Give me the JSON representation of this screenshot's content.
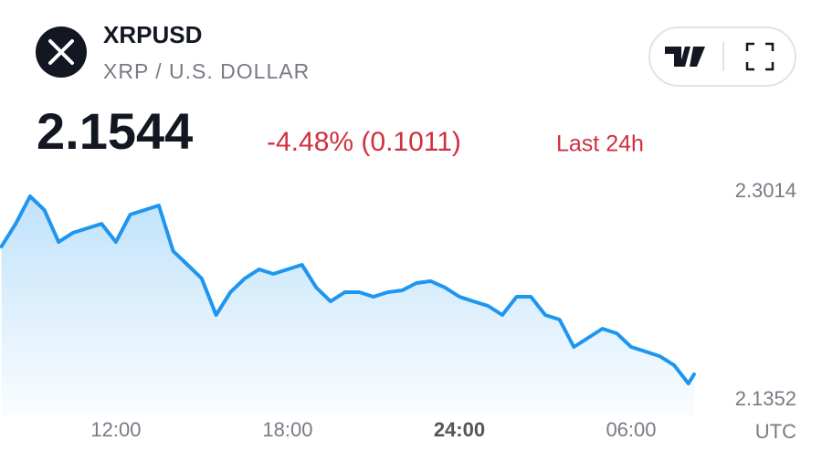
{
  "header": {
    "symbol": "XRPUSD",
    "name": "XRP / U.S. DOLLAR",
    "price": "2.1544",
    "change": "-4.48% (0.1011)",
    "period": "Last 24h"
  },
  "chart_data": {
    "type": "line",
    "x": [
      8,
      8.5,
      9,
      9.5,
      10,
      10.5,
      11,
      11.5,
      12,
      12.5,
      13,
      13.5,
      14,
      14.5,
      15,
      15.5,
      16,
      16.5,
      17,
      17.5,
      18,
      18.5,
      19,
      19.5,
      20,
      20.5,
      21,
      21.5,
      22,
      22.5,
      23,
      23.5,
      24,
      24.5,
      25,
      25.5,
      26,
      26.5,
      27,
      27.5,
      28,
      28.5,
      29,
      29.5,
      30,
      30.5,
      31,
      31.5,
      32,
      32.2
    ],
    "series": [
      {
        "name": "XRPUSD",
        "color": "#1e96f0",
        "values": [
          2.2577,
          2.2759,
          2.2978,
          2.2869,
          2.2614,
          2.2687,
          2.2723,
          2.2759,
          2.2614,
          2.2832,
          2.2869,
          2.2905,
          2.2541,
          2.2432,
          2.2322,
          2.2031,
          2.2213,
          2.2322,
          2.2395,
          2.2359,
          2.2395,
          2.2432,
          2.225,
          2.214,
          2.2213,
          2.2213,
          2.2177,
          2.2213,
          2.2228,
          2.2286,
          2.2301,
          2.225,
          2.2177,
          2.214,
          2.2104,
          2.2031,
          2.2177,
          2.2177,
          2.2031,
          2.1995,
          2.1776,
          2.1849,
          2.1922,
          2.1885,
          2.1776,
          2.174,
          2.1703,
          2.1631,
          2.1485,
          2.1558
        ]
      }
    ],
    "xlim": [
      7.95,
      36.67
    ],
    "xticks": [
      {
        "value": 12,
        "label": "12:00"
      },
      {
        "value": 18,
        "label": "18:00"
      },
      {
        "value": 24,
        "label": "24:00"
      },
      {
        "value": 30,
        "label": "06:00"
      }
    ],
    "xlabel": "UTC",
    "ylim": [
      2.123,
      2.316
    ],
    "yticks": [
      2.1352,
      2.3014
    ],
    "grid": false
  }
}
